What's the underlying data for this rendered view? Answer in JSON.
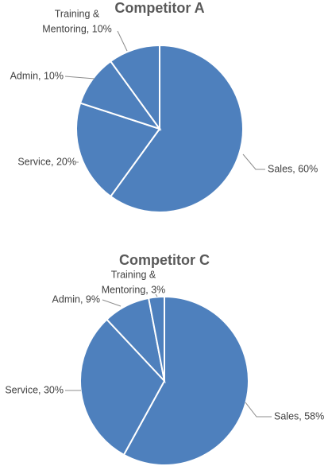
{
  "colors": {
    "slice_fill": "#4e80bd",
    "slice_border": "#ffffff",
    "title_text": "#595959",
    "label_text": "#404040",
    "leader_line": "#8c8c8c",
    "background": "#ffffff"
  },
  "chart_data": [
    {
      "type": "pie",
      "title": "Competitor A",
      "slices": [
        {
          "name": "Sales",
          "value": 60,
          "label_lines": [
            "Sales, 60%"
          ]
        },
        {
          "name": "Service",
          "value": 20,
          "label_lines": [
            "Service, 20%"
          ]
        },
        {
          "name": "Admin",
          "value": 10,
          "label_lines": [
            "Admin, 10%"
          ]
        },
        {
          "name": "Training & Mentoring",
          "value": 10,
          "label_lines": [
            "Training &",
            "Mentoring, 10%"
          ]
        }
      ]
    },
    {
      "type": "pie",
      "title": "Competitor C",
      "slices": [
        {
          "name": "Sales",
          "value": 58,
          "label_lines": [
            "Sales, 58%"
          ]
        },
        {
          "name": "Service",
          "value": 30,
          "label_lines": [
            "Service, 30%"
          ]
        },
        {
          "name": "Admin",
          "value": 9,
          "label_lines": [
            "Admin, 9%"
          ]
        },
        {
          "name": "Training & Mentoring",
          "value": 3,
          "label_lines": [
            "Training &",
            "Mentoring, 3%"
          ]
        }
      ]
    }
  ]
}
